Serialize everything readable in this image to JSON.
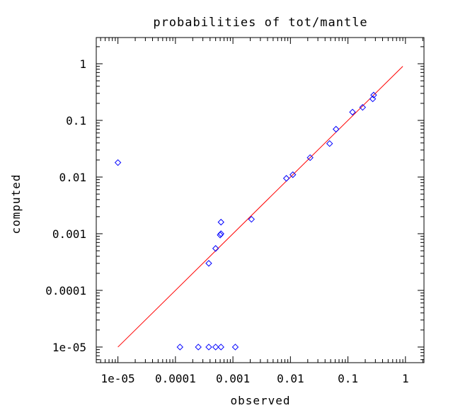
{
  "chart_data": {
    "type": "scatter",
    "title": "probabilities of tot/mantle",
    "xlabel": "observed",
    "ylabel": "computed",
    "xscale": "log",
    "yscale": "log",
    "xlim": [
      4.2e-06,
      2.1
    ],
    "ylim": [
      5.3e-06,
      2.9
    ],
    "xticks": [
      {
        "value": 1e-05,
        "label": "1e-05"
      },
      {
        "value": 0.0001,
        "label": "0.0001"
      },
      {
        "value": 0.001,
        "label": "0.001"
      },
      {
        "value": 0.01,
        "label": "0.01"
      },
      {
        "value": 0.1,
        "label": "0.1"
      },
      {
        "value": 1,
        "label": "1"
      }
    ],
    "yticks": [
      {
        "value": 1e-05,
        "label": "1e-05"
      },
      {
        "value": 0.0001,
        "label": "0.0001"
      },
      {
        "value": 0.001,
        "label": "0.001"
      },
      {
        "value": 0.01,
        "label": "0.01"
      },
      {
        "value": 0.1,
        "label": "0.1"
      },
      {
        "value": 1,
        "label": "1"
      }
    ],
    "grid": false,
    "colors": {
      "points": "#0000ff",
      "line": "#ff0000",
      "axes": "#000000"
    },
    "reference_line": {
      "x": [
        1e-05,
        0.9
      ],
      "y": [
        1e-05,
        0.9
      ]
    },
    "points": [
      {
        "x": 1e-05,
        "y": 0.018
      },
      {
        "x": 0.00012,
        "y": 1e-05
      },
      {
        "x": 0.00025,
        "y": 1e-05
      },
      {
        "x": 0.00038,
        "y": 1e-05
      },
      {
        "x": 0.0005,
        "y": 1e-05
      },
      {
        "x": 0.00062,
        "y": 1e-05
      },
      {
        "x": 0.0011,
        "y": 1e-05
      },
      {
        "x": 0.00038,
        "y": 0.0003
      },
      {
        "x": 0.0005,
        "y": 0.00055
      },
      {
        "x": 0.0006,
        "y": 0.00095
      },
      {
        "x": 0.00062,
        "y": 0.001
      },
      {
        "x": 0.00062,
        "y": 0.0016
      },
      {
        "x": 0.0021,
        "y": 0.0018
      },
      {
        "x": 0.0085,
        "y": 0.0095
      },
      {
        "x": 0.011,
        "y": 0.011
      },
      {
        "x": 0.022,
        "y": 0.022
      },
      {
        "x": 0.048,
        "y": 0.039
      },
      {
        "x": 0.062,
        "y": 0.07
      },
      {
        "x": 0.12,
        "y": 0.14
      },
      {
        "x": 0.18,
        "y": 0.17
      },
      {
        "x": 0.27,
        "y": 0.24
      },
      {
        "x": 0.28,
        "y": 0.28
      }
    ]
  }
}
